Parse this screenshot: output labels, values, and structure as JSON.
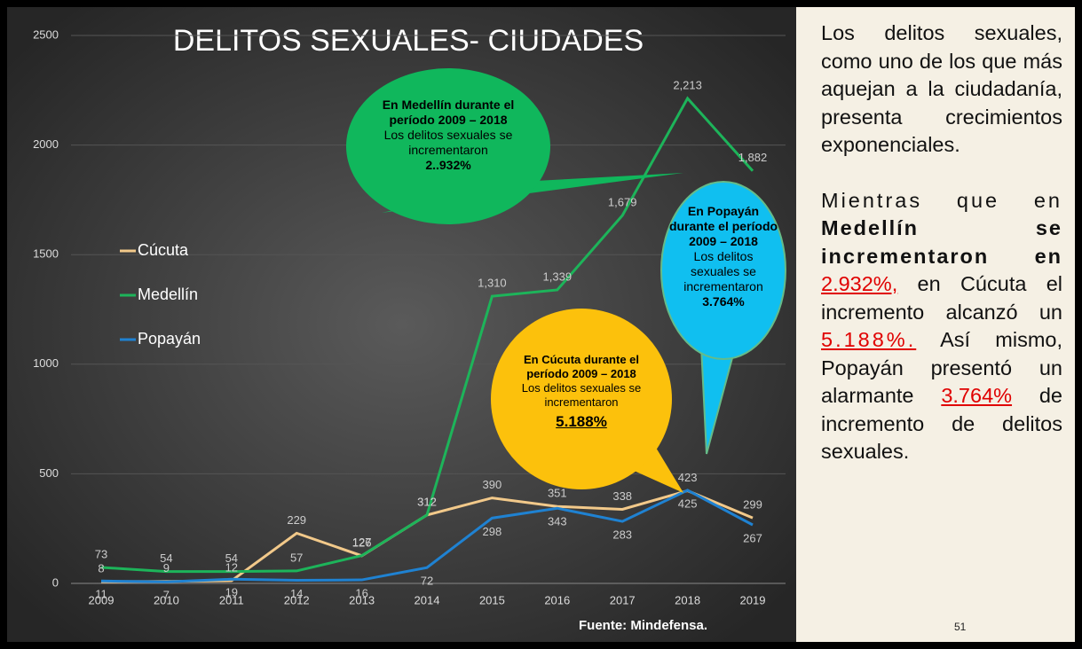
{
  "chart_data": {
    "type": "line",
    "title": "DELITOS SEXUALES- CIUDADES",
    "categories": [
      "2009",
      "2010",
      "2011",
      "2012",
      "2013",
      "2014",
      "2015",
      "2016",
      "2017",
      "2018",
      "2019"
    ],
    "series": [
      {
        "name": "Cúcuta",
        "color": "#f2c98a",
        "values": [
          8,
          9,
          12,
          229,
          126,
          312,
          390,
          351,
          338,
          423,
          299
        ]
      },
      {
        "name": "Medellín",
        "color": "#1db45a",
        "values": [
          73,
          54,
          54,
          57,
          127,
          312,
          1310,
          1339,
          1679,
          2213,
          1882
        ],
        "value_labels": [
          "73",
          "54",
          "54",
          "57",
          "127",
          "312",
          "1,310",
          "1,339",
          "1,679",
          "2,213",
          "1,882"
        ]
      },
      {
        "name": "Popayán",
        "color": "#1f82d2",
        "values": [
          11,
          7,
          19,
          14,
          16,
          72,
          298,
          343,
          283,
          425,
          267
        ]
      }
    ],
    "ylim": [
      0,
      2500
    ],
    "yticks": [
      0,
      500,
      1000,
      1500,
      2000,
      2500
    ],
    "grid": true,
    "legend": "left",
    "annotations": [
      {
        "bold": "En Medellín durante el período 2009 – 2018",
        "text": "Los delitos sexuales se incrementaron",
        "figure": "2..932%"
      },
      {
        "bold": "En Popayán durante el período 2009 – 2018",
        "text": "Los delitos sexuales se incrementaron",
        "figure": "3.764%"
      },
      {
        "bold": "En Cúcuta durante el período 2009 – 2018",
        "text": "Los delitos sexuales se incrementaron",
        "figure": "5.188%"
      }
    ],
    "source": "Fuente: Mindefensa."
  },
  "panel": {
    "paragraph1": "Los delitos sexuales, como uno de los que más aquejan a la ciudadanía, presenta crecimientos exponenciales.",
    "p2_a": "Mientras que en ",
    "p2_b": "Medellín se incrementaron en",
    "p2_c": "2.932%,",
    "p2_d": " en Cúcuta el incremento alcanzó un ",
    "p2_e": "5.188%.",
    "p2_f": " Así mismo, Popayán presentó un alarmante ",
    "p2_g": "3.764%",
    "p2_h": " de incremento de delitos sexuales."
  },
  "page_number": "51"
}
